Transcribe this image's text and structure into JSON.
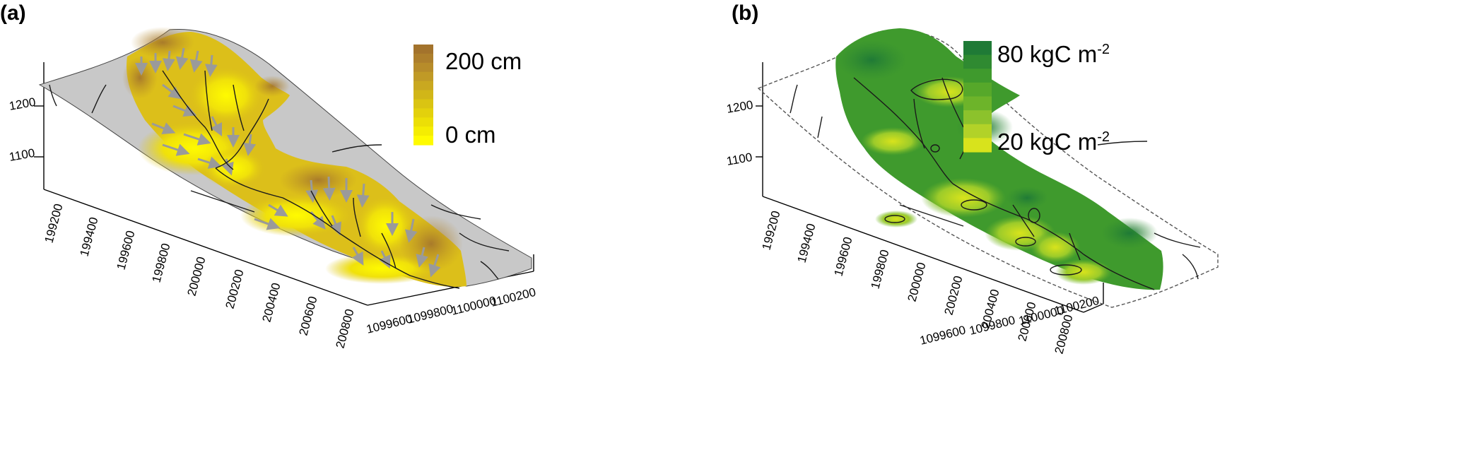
{
  "panels": [
    {
      "label": "(a)",
      "legend": {
        "max_label": "200 cm",
        "min_label": "0 cm",
        "colors": [
          "#a3732c",
          "#ad7f2c",
          "#b78c2a",
          "#c09a26",
          "#c9a820",
          "#d1b618",
          "#dac412",
          "#e3d10c",
          "#ecdf06",
          "#f5ed02",
          "#fffb00"
        ]
      },
      "z_ticks": [
        "1200",
        "1100"
      ],
      "x_ticks": [
        "199200",
        "199400",
        "199600",
        "199800",
        "200000",
        "200200",
        "200400",
        "200600",
        "200800"
      ],
      "y_ticks": [
        "1099600",
        "1099800",
        "1100000",
        "1100200"
      ]
    },
    {
      "label": "(b)",
      "legend": {
        "max_label": "80 kgC m",
        "max_sup": "-2",
        "min_label": "20 kgC m",
        "min_sup": "-2",
        "colors": [
          "#1f7a36",
          "#2f8a31",
          "#3f9a2d",
          "#56a82a",
          "#6db42a",
          "#8cc22c",
          "#b2d228",
          "#d8e31c"
        ]
      },
      "z_ticks": [
        "1200",
        "1100"
      ],
      "x_ticks": [
        "199200",
        "199400",
        "199600",
        "199800",
        "200000",
        "200200",
        "200400",
        "200600",
        "200800"
      ],
      "y_ticks": [
        "1099600",
        "1099800",
        "1100000",
        "1100200"
      ]
    }
  ]
}
